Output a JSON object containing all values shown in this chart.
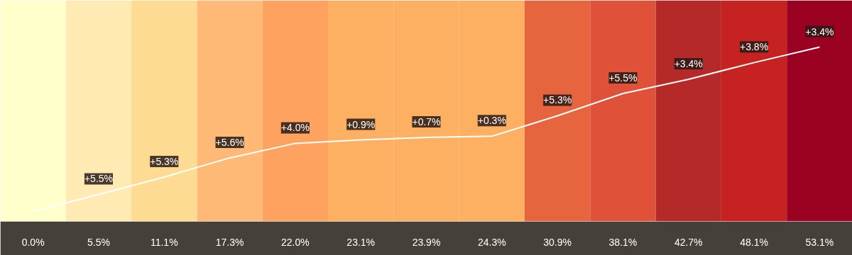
{
  "chart_data": {
    "type": "line",
    "categories": [
      null,
      null,
      null,
      null,
      null,
      null,
      null,
      null,
      null,
      null,
      null,
      null,
      null
    ],
    "series": [
      {
        "color": "#ffffff",
        "values": [
          0.0,
          5.5,
          11.1,
          17.3,
          22.0,
          23.1,
          23.9,
          24.3,
          30.9,
          38.1,
          42.7,
          48.1,
          53.1
        ],
        "value_labels": [
          "0.0%",
          "5.5%",
          "11.1%",
          "17.3%",
          "22.0%",
          "23.1%",
          "23.9%",
          "24.3%",
          "30.9%",
          "38.1%",
          "42.7%",
          "48.1%",
          "53.1%"
        ]
      }
    ],
    "colors": [
      "#ffffcc",
      "#ffeab4",
      "#fedb92",
      "#feb976",
      "#fda35f",
      "#fdaf62",
      "#fdaf62",
      "#fdaf62",
      "#e6653f",
      "#df5138",
      "#b52a29",
      "#c72222",
      "#9b0221"
    ],
    "annotations": [
      {
        "text": "+5.5%",
        "y": 5.5
      },
      {
        "text": "+5.3%",
        "y": 11.1
      },
      {
        "text": "+5.6%",
        "y": 17.3
      },
      {
        "text": "+4.0%",
        "y": 22.0
      },
      {
        "text": "+0.9%",
        "y": 23.1
      },
      {
        "text": "+0.7%",
        "y": 23.9
      },
      {
        "text": "+0.3%",
        "y": 24.3
      },
      {
        "text": "+5.3%",
        "y": 30.9
      },
      {
        "text": "+5.5%",
        "y": 38.1
      },
      {
        "text": "+3.4%",
        "y": 42.7
      },
      {
        "text": "+3.8%",
        "y": 48.1
      },
      {
        "text": "+3.4%",
        "y": 53.1
      }
    ],
    "grid": false,
    "marker": "none",
    "line_style": "solid"
  }
}
